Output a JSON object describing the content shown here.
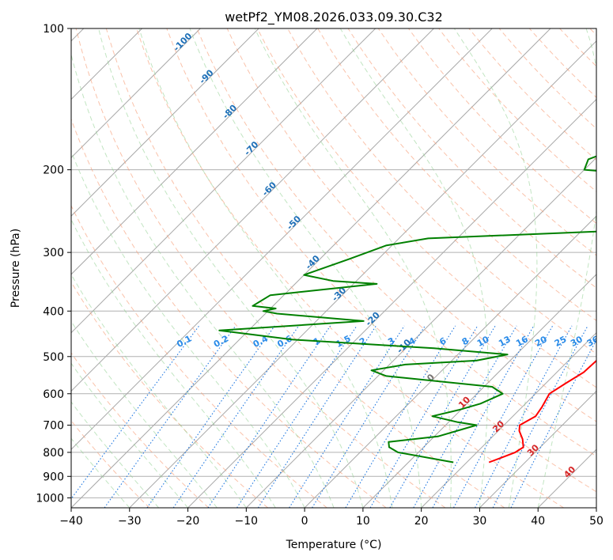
{
  "chart_data": {
    "type": "skew-t",
    "title": "wetPf2_YM08.2026.033.09.30.C32",
    "xlabel": "Temperature (°C)",
    "ylabel": "Pressure (hPa)",
    "xlim": [
      -40,
      50
    ],
    "ylim": [
      1050,
      100
    ],
    "x_ticks": [
      -40,
      -30,
      -20,
      -10,
      0,
      10,
      20,
      30,
      40,
      50
    ],
    "y_ticks": [
      100,
      200,
      300,
      400,
      500,
      600,
      700,
      800,
      900,
      1000
    ],
    "dry_adiabat_labels": [
      "-100",
      "-90",
      "-80",
      "-70",
      "-60",
      "-50",
      "-40",
      "-30",
      "-20",
      "-10",
      "0",
      "10",
      "20",
      "30",
      "40"
    ],
    "mixing_ratio_labels": [
      "0.1",
      "0.2",
      "0.4",
      "0.6",
      "1",
      "1.5",
      "2",
      "3",
      "4",
      "6",
      "8",
      "10",
      "13",
      "16",
      "20",
      "25",
      "30",
      "36"
    ],
    "series": [
      {
        "name": "temperature",
        "color": "#ff0000",
        "points": [
          [
            840,
            23.8
          ],
          [
            820,
            25.2
          ],
          [
            800,
            26.6
          ],
          [
            780,
            27.1
          ],
          [
            750,
            25.6
          ],
          [
            720,
            23.6
          ],
          [
            700,
            22.7
          ],
          [
            670,
            23.9
          ],
          [
            640,
            23.4
          ],
          [
            600,
            22.4
          ],
          [
            570,
            23.4
          ],
          [
            540,
            24.6
          ],
          [
            510,
            24.8
          ],
          [
            480,
            25.6
          ],
          [
            450,
            27.1
          ],
          [
            420,
            27.9
          ],
          [
            390,
            27.2
          ],
          [
            370,
            26.8
          ],
          [
            350,
            26.1
          ],
          [
            320,
            25.7
          ],
          [
            300,
            25.7
          ],
          [
            280,
            25.9
          ],
          [
            260,
            25.6
          ],
          [
            240,
            24.8
          ],
          [
            220,
            24.7
          ],
          [
            200,
            24.3
          ],
          [
            180,
            23.9
          ],
          [
            160,
            24.3
          ],
          [
            140,
            25.0
          ],
          [
            130,
            24.2
          ],
          [
            120,
            25.1
          ],
          [
            110,
            27.0
          ],
          [
            100,
            28.1
          ]
        ]
      },
      {
        "name": "dewpoint",
        "color": "#008000",
        "points": [
          [
            840,
            17.7
          ],
          [
            800,
            6.5
          ],
          [
            780,
            4.1
          ],
          [
            760,
            3.1
          ],
          [
            740,
            10.6
          ],
          [
            700,
            15.3
          ],
          [
            690,
            11.6
          ],
          [
            670,
            6.2
          ],
          [
            650,
            9.6
          ],
          [
            630,
            12.3
          ],
          [
            600,
            14.4
          ],
          [
            580,
            11.4
          ],
          [
            550,
            -8.6
          ],
          [
            535,
            -12.1
          ],
          [
            520,
            -7.3
          ],
          [
            510,
            4.2
          ],
          [
            495,
            8.5
          ],
          [
            480,
            -5.2
          ],
          [
            460,
            -31.0
          ],
          [
            440,
            -45.0
          ],
          [
            420,
            -21.9
          ],
          [
            405,
            -38.0
          ],
          [
            400,
            -40.8
          ],
          [
            395,
            -39.1
          ],
          [
            390,
            -43.5
          ],
          [
            370,
            -42.3
          ],
          [
            350,
            -26.0
          ],
          [
            345,
            -34.0
          ],
          [
            335,
            -40.0
          ],
          [
            310,
            -35.0
          ],
          [
            290,
            -31.0
          ],
          [
            280,
            -25.0
          ],
          [
            270,
            5.0
          ],
          [
            260,
            14.0
          ],
          [
            240,
            20.0
          ],
          [
            210,
            12.5
          ],
          [
            200,
            -10.0
          ],
          [
            190,
            -11.1
          ],
          [
            170,
            -4.8
          ],
          [
            160,
            -3.8
          ],
          [
            150,
            0.2
          ],
          [
            140,
            2.5
          ],
          [
            130,
            -1.3
          ],
          [
            120,
            4.2
          ],
          [
            110,
            7.6
          ],
          [
            100,
            10.7
          ]
        ]
      }
    ]
  }
}
